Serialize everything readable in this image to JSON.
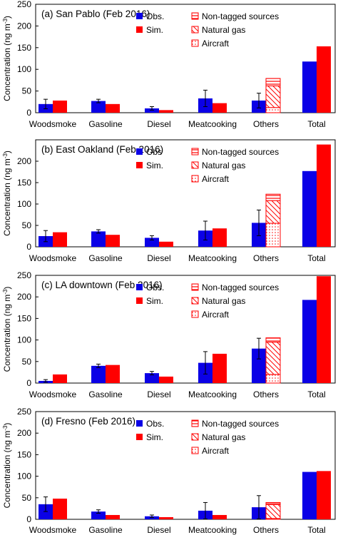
{
  "colors": {
    "obs": "#0b00e6",
    "sim": "#ff0000",
    "stack": "#ff0000",
    "axis": "#000000"
  },
  "ylabel_main": "Concentration (ng m",
  "ylabel_sup": "-3",
  "ylabel_close": ")",
  "chart_data": [
    {
      "type": "bar",
      "title": "(a) San Pablo (Feb 2016)",
      "ylim": [
        0,
        250
      ],
      "yticks": [
        0,
        50,
        100,
        150,
        200,
        250
      ],
      "ytick_labels": [
        "0",
        "50",
        "100",
        "150",
        "200",
        "250"
      ],
      "categories": [
        "Woodsmoke",
        "Gasoline",
        "Diesel",
        "Meatcooking",
        "Others",
        "Total"
      ],
      "obs": [
        20,
        27,
        10,
        33,
        28,
        118
      ],
      "obs_err": [
        11,
        4,
        4,
        19,
        17,
        0
      ],
      "sim": [
        28,
        20,
        6,
        22,
        null,
        153
      ],
      "others_stack": [
        {
          "name": "Aircraft",
          "value": 12
        },
        {
          "name": "Natural gas",
          "value": 50
        },
        {
          "name": "Non-tagged sources",
          "value": 17
        }
      ],
      "legend": {
        "obs": "Obs.",
        "sim": "Sim.",
        "nontagged": "Non-tagged sources",
        "natgas": "Natural gas",
        "aircraft": "Aircraft"
      }
    },
    {
      "type": "bar",
      "title": "(b) East Oakland (Feb 2016)",
      "ylim": [
        0,
        250
      ],
      "yticks": [
        0,
        50,
        100,
        150,
        200
      ],
      "ytick_labels": [
        "0",
        "50",
        "100",
        "150",
        "200"
      ],
      "categories": [
        "Woodsmoke",
        "Gasoline",
        "Diesel",
        "Meatcooking",
        "Others",
        "Total"
      ],
      "obs": [
        25,
        36,
        21,
        38,
        56,
        177
      ],
      "obs_err": [
        13,
        4,
        5,
        22,
        30,
        0
      ],
      "sim": [
        34,
        28,
        12,
        43,
        null,
        239
      ],
      "others_stack": [
        {
          "name": "Aircraft",
          "value": 55
        },
        {
          "name": "Natural gas",
          "value": 53
        },
        {
          "name": "Non-tagged sources",
          "value": 15
        }
      ],
      "legend": {
        "obs": "Obs",
        "sim": "Sim.",
        "nontagged": "Non-tagged sources",
        "natgas": "Natural gas",
        "aircraft": "Aircraft"
      }
    },
    {
      "type": "bar",
      "title": "(c) LA downtown (Feb 2016)",
      "ylim": [
        0,
        250
      ],
      "yticks": [
        0,
        50,
        100,
        150,
        200,
        250
      ],
      "ytick_labels": [
        "0",
        "50",
        "100",
        "150",
        "200",
        "250"
      ],
      "categories": [
        "Woodsmoke",
        "Gasoline",
        "Diesel",
        "Meatcooking",
        "Others",
        "Total"
      ],
      "obs": [
        5,
        40,
        23,
        47,
        80,
        193
      ],
      "obs_err": [
        3,
        4,
        4,
        26,
        24,
        0
      ],
      "sim": [
        20,
        42,
        15,
        68,
        null,
        248
      ],
      "others_stack": [
        {
          "name": "Aircraft",
          "value": 20
        },
        {
          "name": "Natural gas",
          "value": 75
        },
        {
          "name": "Non-tagged sources",
          "value": 10
        }
      ],
      "legend": {
        "obs": "Obs.",
        "sim": "Sim.",
        "nontagged": "Non-tagged sources",
        "natgas": "Natural gas",
        "aircraft": "Aircraft"
      }
    },
    {
      "type": "bar",
      "title": "(d) Fresno (Feb 2016)",
      "ylim": [
        0,
        250
      ],
      "yticks": [
        0,
        50,
        100,
        150,
        200,
        250
      ],
      "ytick_labels": [
        "0",
        "50",
        "100",
        "150",
        "200",
        "250"
      ],
      "categories": [
        "Woodsmoke",
        "Gasoline",
        "Diesel",
        "Meatcooking",
        "Others",
        "Total"
      ],
      "obs": [
        35,
        18,
        7,
        20,
        28,
        110
      ],
      "obs_err": [
        17,
        4,
        3,
        19,
        27,
        0
      ],
      "sim": [
        48,
        10,
        5,
        10,
        null,
        112
      ],
      "others_stack": [
        {
          "name": "Aircraft",
          "value": 2
        },
        {
          "name": "Natural gas",
          "value": 32
        },
        {
          "name": "Non-tagged sources",
          "value": 5
        }
      ],
      "legend": {
        "obs": "Obs.",
        "sim": "Sim.",
        "nontagged": "Non-tagged sources",
        "natgas": "Natural gas",
        "aircraft": "Aircraft"
      }
    }
  ]
}
